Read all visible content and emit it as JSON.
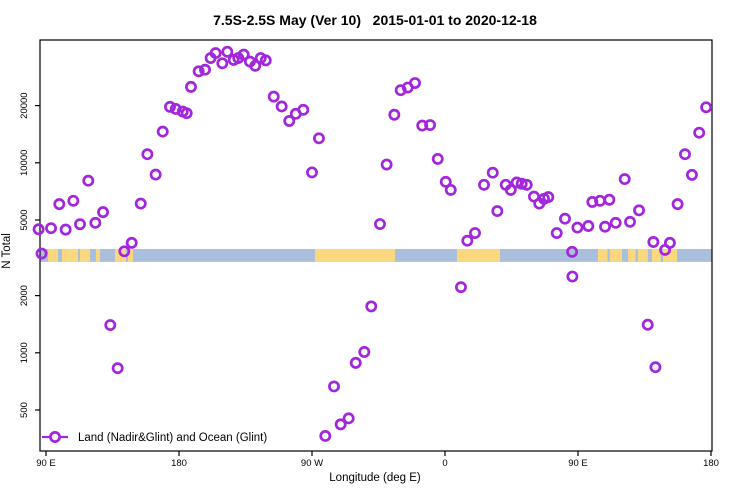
{
  "chart_data": {
    "type": "scatter",
    "title": "7.5S-2.5S May (Ver 10)   2015-01-01 to 2020-12-18",
    "xlabel": "Longitude (deg E)",
    "ylabel": "N Total",
    "y_scale": "log",
    "ylim": [
      350,
      50000
    ],
    "x_axis_note": "longitude axis wraps eastward from 90E to 180 (axis degrees 90 to 540)",
    "x_ticks": [
      {
        "deg": 90,
        "label": "90 E"
      },
      {
        "deg": 180,
        "label": "180"
      },
      {
        "deg": 270,
        "label": "90 W"
      },
      {
        "deg": 360,
        "label": "0"
      },
      {
        "deg": 450,
        "label": "90 E"
      },
      {
        "deg": 540,
        "label": "180"
      }
    ],
    "y_ticks": [
      500,
      1000,
      2000,
      5000,
      10000,
      20000
    ],
    "legend": {
      "label": "Land (Nadir&Glint) and Ocean (Glint)"
    },
    "colors": {
      "point": "#A226DC",
      "ocean_band": "#A9BFDB",
      "land_band": "#FAD87F",
      "axis": "#000000"
    },
    "band": {
      "description": "ocean (blue) / land (yellow) strip along longitude",
      "value_top": 3520,
      "value_bottom": 3010,
      "land_segments_deg": [
        [
          91.4,
          98.1
        ],
        [
          100.8,
          111.7
        ],
        [
          113.0,
          119.8
        ],
        [
          123.8,
          126.5
        ],
        [
          136.7,
          144.1
        ],
        [
          145.5,
          148.9
        ],
        [
          272.0,
          326.2
        ],
        [
          368.1,
          397.2
        ],
        [
          463.5,
          470.0
        ],
        [
          471.5,
          479.8
        ],
        [
          483.8,
          489.0
        ],
        [
          490.5,
          497.3
        ],
        [
          500.0,
          506.0
        ],
        [
          507.5,
          517.0
        ]
      ]
    },
    "points": [
      [
        85.0,
        4470
      ],
      [
        87.0,
        3330
      ],
      [
        93.4,
        4530
      ],
      [
        99.0,
        6060
      ],
      [
        103.3,
        4450
      ],
      [
        108.5,
        6310
      ],
      [
        113.0,
        4750
      ],
      [
        118.6,
        8050
      ],
      [
        123.4,
        4830
      ],
      [
        128.6,
        5500
      ],
      [
        133.5,
        1400
      ],
      [
        138.5,
        830
      ],
      [
        143.0,
        3420
      ],
      [
        148.0,
        3790
      ],
      [
        154.1,
        6100
      ],
      [
        158.6,
        11100
      ],
      [
        164.2,
        8670
      ],
      [
        169.0,
        14600
      ],
      [
        173.9,
        19700
      ],
      [
        177.8,
        19200
      ],
      [
        182.5,
        18600
      ],
      [
        185.2,
        18250
      ],
      [
        188.1,
        25100
      ],
      [
        193.3,
        30300
      ],
      [
        197.6,
        30900
      ],
      [
        201.4,
        35600
      ],
      [
        204.8,
        37800
      ],
      [
        209.3,
        33400
      ],
      [
        212.7,
        38400
      ],
      [
        217.0,
        34800
      ],
      [
        220.1,
        35600
      ],
      [
        223.8,
        37100
      ],
      [
        228.0,
        34100
      ],
      [
        231.6,
        32400
      ],
      [
        235.3,
        35600
      ],
      [
        238.7,
        34600
      ],
      [
        244.1,
        22300
      ],
      [
        249.5,
        19800
      ],
      [
        254.6,
        16600
      ],
      [
        259.0,
        18100
      ],
      [
        264.1,
        19000
      ],
      [
        270.0,
        8900
      ],
      [
        274.7,
        13450
      ],
      [
        279.0,
        365
      ],
      [
        284.9,
        665
      ],
      [
        289.4,
        420
      ],
      [
        294.8,
        452
      ],
      [
        299.6,
        885
      ],
      [
        305.4,
        1010
      ],
      [
        310.1,
        1755
      ],
      [
        316.0,
        4760
      ],
      [
        320.5,
        9790
      ],
      [
        325.7,
        17900
      ],
      [
        330.0,
        24100
      ],
      [
        334.8,
        24900
      ],
      [
        339.7,
        26300
      ],
      [
        344.6,
        15700
      ],
      [
        349.9,
        15800
      ],
      [
        355.1,
        10480
      ],
      [
        360.5,
        7940
      ],
      [
        363.9,
        7200
      ],
      [
        370.8,
        2215
      ],
      [
        375.1,
        3890
      ],
      [
        380.3,
        4270
      ],
      [
        386.4,
        7660
      ],
      [
        392.3,
        8870
      ],
      [
        395.4,
        5570
      ],
      [
        401.1,
        7660
      ],
      [
        404.5,
        7200
      ],
      [
        408.5,
        7880
      ],
      [
        411.9,
        7760
      ],
      [
        415.3,
        7660
      ],
      [
        420.2,
        6640
      ],
      [
        423.8,
        6100
      ],
      [
        427.0,
        6460
      ],
      [
        429.9,
        6600
      ],
      [
        435.6,
        4270
      ],
      [
        441.2,
        5080
      ],
      [
        446.0,
        3400
      ],
      [
        446.2,
        2520
      ],
      [
        449.6,
        4560
      ],
      [
        457.0,
        4650
      ],
      [
        459.7,
        6220
      ],
      [
        464.9,
        6310
      ],
      [
        468.3,
        4610
      ],
      [
        471.2,
        6390
      ],
      [
        475.5,
        4830
      ],
      [
        481.6,
        8210
      ],
      [
        485.2,
        4890
      ],
      [
        491.3,
        5620
      ],
      [
        497.2,
        1405
      ],
      [
        501.0,
        3830
      ],
      [
        502.4,
        840
      ],
      [
        508.9,
        3480
      ],
      [
        512.2,
        3790
      ],
      [
        517.4,
        6060
      ],
      [
        522.4,
        11100
      ],
      [
        527.1,
        8640
      ],
      [
        532.0,
        14400
      ],
      [
        536.7,
        19600
      ]
    ]
  }
}
